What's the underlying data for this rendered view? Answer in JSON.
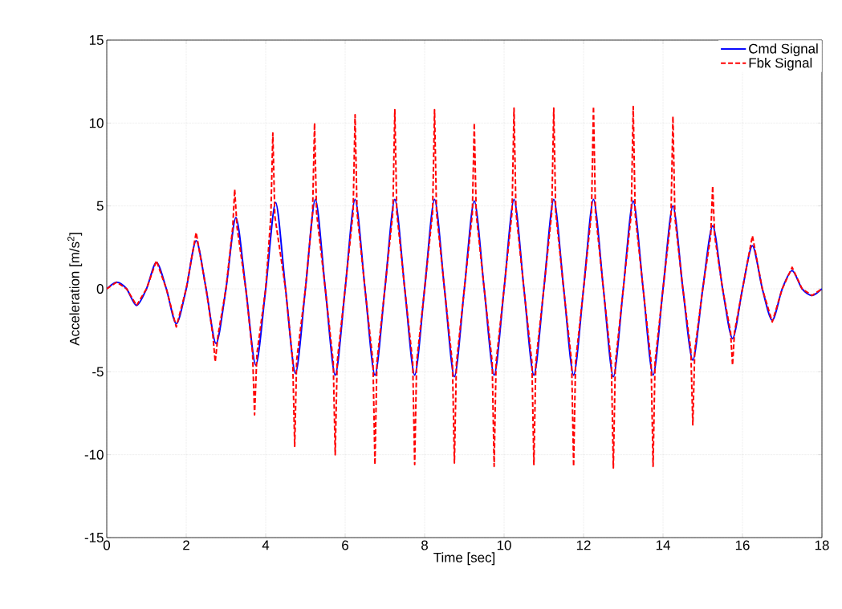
{
  "chart_data": {
    "type": "line",
    "xlabel": "Time [sec]",
    "ylabel": "Acceleration [m/s$^{2}$]",
    "xlim": [
      0,
      18
    ],
    "ylim": [
      -15,
      15
    ],
    "xticks": [
      0,
      2,
      4,
      6,
      8,
      10,
      12,
      14,
      16,
      18
    ],
    "yticks": [
      -15,
      -10,
      -5,
      0,
      5,
      10,
      15
    ],
    "grid": true,
    "legend": "top right",
    "marker": "none",
    "series": [
      {
        "name": "Cmd Signal",
        "color": "#0000ff",
        "line_style": "solid",
        "x": [
          0,
          0.25,
          0.5,
          0.75,
          1,
          1.25,
          1.5,
          1.75,
          2,
          2.25,
          2.5,
          2.75,
          3,
          3.25,
          3.5,
          3.75,
          4,
          4.25,
          4.5,
          4.75,
          5,
          5.25,
          5.5,
          5.75,
          6,
          6.25,
          6.5,
          6.75,
          7,
          7.25,
          7.5,
          7.75,
          8,
          8.25,
          8.5,
          8.75,
          9,
          9.25,
          9.5,
          9.75,
          10,
          10.25,
          10.5,
          10.75,
          11,
          11.25,
          11.5,
          11.75,
          12,
          12.25,
          12.5,
          12.75,
          13,
          13.25,
          13.5,
          13.75,
          14,
          14.25,
          14.5,
          14.75,
          15,
          15.25,
          15.5,
          15.75,
          16,
          16.25,
          16.5,
          16.75,
          17,
          17.25,
          17.5,
          17.75,
          18
        ],
        "values": [
          0,
          0.4,
          0,
          -1.0,
          0,
          1.6,
          0,
          -2.1,
          0,
          2.9,
          0,
          -3.3,
          0,
          4.3,
          0,
          -4.6,
          0,
          5.2,
          0,
          -5.1,
          0,
          5.4,
          0,
          -5.2,
          0,
          5.4,
          0,
          -5.2,
          0,
          5.4,
          0,
          -5.2,
          0,
          5.4,
          0,
          -5.3,
          0,
          5.3,
          0,
          -5.2,
          0,
          5.4,
          0,
          -5.2,
          0,
          5.4,
          0,
          -5.2,
          0,
          5.4,
          0,
          -5.3,
          0,
          5.3,
          0,
          -5.2,
          0,
          5.0,
          0,
          -4.3,
          0,
          3.8,
          0,
          -3.0,
          0,
          2.6,
          0,
          -1.9,
          0,
          1.1,
          0,
          -0.4,
          0
        ]
      },
      {
        "name": "Fbk Signal",
        "color": "#ff0000",
        "line_style": "dashed",
        "x": [
          0,
          0.25,
          0.5,
          0.75,
          1,
          1.25,
          1.5,
          1.75,
          2,
          2.25,
          2.5,
          2.67,
          2.73,
          2.8,
          3,
          3.17,
          3.22,
          3.28,
          3.5,
          3.67,
          3.72,
          3.78,
          4,
          4.13,
          4.18,
          4.23,
          4.5,
          4.68,
          4.73,
          4.78,
          5,
          5.18,
          5.23,
          5.28,
          5.5,
          5.7,
          5.75,
          5.8,
          6,
          6.2,
          6.25,
          6.3,
          6.5,
          6.7,
          6.75,
          6.8,
          7,
          7.2,
          7.25,
          7.3,
          7.5,
          7.7,
          7.75,
          7.8,
          8,
          8.2,
          8.25,
          8.3,
          8.5,
          8.7,
          8.75,
          8.8,
          9,
          9.2,
          9.25,
          9.3,
          9.5,
          9.7,
          9.75,
          9.8,
          10,
          10.2,
          10.25,
          10.3,
          10.5,
          10.7,
          10.75,
          10.8,
          11,
          11.2,
          11.25,
          11.3,
          11.5,
          11.7,
          11.75,
          11.8,
          12,
          12.2,
          12.25,
          12.3,
          12.5,
          12.7,
          12.75,
          12.8,
          13,
          13.2,
          13.25,
          13.3,
          13.5,
          13.7,
          13.75,
          13.8,
          14,
          14.2,
          14.25,
          14.3,
          14.5,
          14.7,
          14.75,
          14.8,
          15,
          15.2,
          15.25,
          15.3,
          15.5,
          15.7,
          15.75,
          15.8,
          16,
          16.25,
          16.5,
          16.75,
          17,
          17.25,
          17.5,
          17.75,
          18
        ],
        "values": [
          0,
          0.4,
          0,
          -1.0,
          0,
          1.7,
          0,
          -2.3,
          0,
          3.4,
          0,
          -2.8,
          -4.4,
          -2.8,
          0,
          3.7,
          6.0,
          3.7,
          0,
          -3.9,
          -7.6,
          -3.9,
          0,
          4.4,
          9.4,
          4.4,
          0,
          -4.3,
          -9.5,
          -4.3,
          0,
          4.6,
          10.0,
          4.6,
          0,
          -4.4,
          -10.0,
          -4.4,
          0,
          4.6,
          10.5,
          4.6,
          0,
          -4.4,
          -10.6,
          -4.4,
          0,
          4.6,
          10.8,
          4.6,
          0,
          -4.4,
          -10.6,
          -4.4,
          0,
          4.6,
          10.8,
          4.6,
          0,
          -4.5,
          -10.5,
          -4.5,
          0,
          4.5,
          10.0,
          4.5,
          0,
          -4.4,
          -10.7,
          -4.4,
          0,
          4.6,
          10.9,
          4.6,
          0,
          -4.4,
          -10.6,
          -4.4,
          0,
          4.6,
          10.9,
          4.6,
          0,
          -4.4,
          -10.7,
          -4.4,
          0,
          4.6,
          11.0,
          4.6,
          0,
          -4.5,
          -10.8,
          -4.5,
          0,
          4.5,
          11.0,
          4.5,
          0,
          -4.4,
          -10.7,
          -4.4,
          0,
          4.3,
          10.4,
          4.3,
          0,
          -3.7,
          -8.2,
          -3.7,
          0,
          3.2,
          6.2,
          3.2,
          0,
          -2.6,
          -4.6,
          -2.6,
          0,
          3.2,
          0,
          -2.0,
          0,
          1.3,
          0,
          -0.4,
          0
        ]
      }
    ]
  }
}
